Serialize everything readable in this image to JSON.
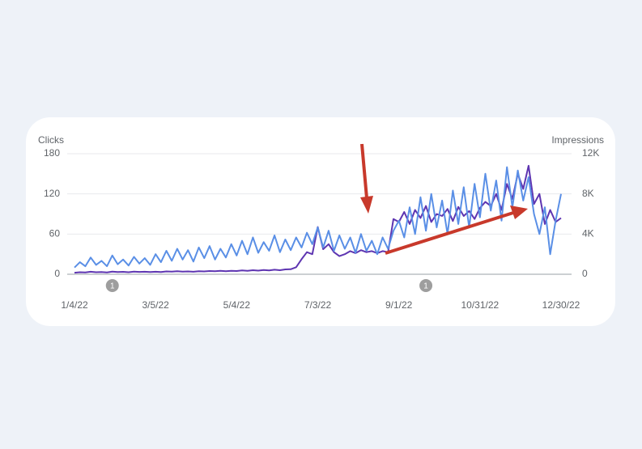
{
  "chart_data": {
    "type": "line",
    "y_label": "Clicks",
    "y2_label": "Impressions",
    "x": [
      "1/4/22",
      "1/8/22",
      "1/12/22",
      "1/16/22",
      "1/20/22",
      "1/24/22",
      "1/28/22",
      "2/1/22",
      "2/5/22",
      "2/9/22",
      "2/13/22",
      "2/17/22",
      "2/21/22",
      "2/25/22",
      "3/1/22",
      "3/5/22",
      "3/9/22",
      "3/13/22",
      "3/17/22",
      "3/21/22",
      "3/25/22",
      "3/29/22",
      "4/2/22",
      "4/6/22",
      "4/10/22",
      "4/14/22",
      "4/18/22",
      "4/22/22",
      "4/26/22",
      "4/30/22",
      "5/4/22",
      "5/8/22",
      "5/12/22",
      "5/16/22",
      "5/20/22",
      "5/24/22",
      "5/28/22",
      "6/1/22",
      "6/5/22",
      "6/9/22",
      "6/13/22",
      "6/17/22",
      "6/21/22",
      "6/25/22",
      "6/29/22",
      "7/3/22",
      "7/7/22",
      "7/11/22",
      "7/15/22",
      "7/19/22",
      "7/23/22",
      "7/27/22",
      "7/31/22",
      "8/4/22",
      "8/8/22",
      "8/12/22",
      "8/16/22",
      "8/20/22",
      "8/24/22",
      "8/28/22",
      "9/1/22",
      "9/5/22",
      "9/9/22",
      "9/13/22",
      "9/17/22",
      "9/21/22",
      "9/25/22",
      "9/29/22",
      "10/3/22",
      "10/7/22",
      "10/11/22",
      "10/15/22",
      "10/19/22",
      "10/23/22",
      "10/27/22",
      "10/31/22",
      "11/4/22",
      "11/8/22",
      "11/12/22",
      "11/16/22",
      "11/20/22",
      "11/24/22",
      "11/28/22",
      "12/2/22",
      "12/6/22",
      "12/10/22",
      "12/14/22",
      "12/18/22",
      "12/22/22",
      "12/26/22",
      "12/30/22"
    ],
    "xlim": [
      "1/4/22",
      "12/30/22"
    ],
    "xticks": [
      "1/4/22",
      "3/5/22",
      "5/4/22",
      "7/3/22",
      "9/1/22",
      "10/31/22",
      "12/30/22"
    ],
    "ylim": [
      0,
      180
    ],
    "yticks": [
      0,
      60,
      120,
      180
    ],
    "y2lim": [
      0,
      12000
    ],
    "y2ticks": [
      0,
      {
        "value": 4000,
        "label": "4K"
      },
      {
        "value": 8000,
        "label": "8K"
      },
      {
        "value": 12000,
        "label": "12K"
      }
    ],
    "grid": true,
    "series": [
      {
        "color": "#5e35b1",
        "axis": "y2",
        "values": [
          150,
          200,
          180,
          250,
          200,
          220,
          180,
          260,
          220,
          240,
          200,
          260,
          230,
          250,
          220,
          250,
          220,
          280,
          260,
          300,
          260,
          280,
          250,
          300,
          280,
          320,
          300,
          340,
          300,
          350,
          320,
          380,
          340,
          400,
          360,
          420,
          380,
          450,
          400,
          480,
          500,
          700,
          1500,
          2200,
          2000,
          4700,
          2500,
          3000,
          2200,
          1800,
          2000,
          2300,
          2100,
          2400,
          2200,
          2300,
          2100,
          2300,
          2200,
          5500,
          5200,
          6200,
          5000,
          6400,
          5600,
          6800,
          5200,
          6000,
          5800,
          6500,
          5300,
          6700,
          5800,
          6300,
          5500,
          6600,
          7200,
          6800,
          8000,
          6400,
          9000,
          7500,
          10000,
          8500,
          10800,
          7000,
          8000,
          5000,
          6400,
          5200,
          5600
        ]
      },
      {
        "color": "#5a8fe6",
        "values": [
          10,
          18,
          12,
          25,
          14,
          20,
          12,
          28,
          15,
          22,
          13,
          26,
          16,
          24,
          14,
          30,
          18,
          35,
          20,
          38,
          22,
          36,
          19,
          40,
          24,
          42,
          22,
          38,
          25,
          45,
          28,
          50,
          30,
          55,
          32,
          48,
          35,
          58,
          33,
          52,
          36,
          55,
          40,
          62,
          45,
          70,
          40,
          65,
          35,
          58,
          38,
          55,
          32,
          60,
          35,
          50,
          30,
          55,
          38,
          65,
          80,
          55,
          100,
          60,
          115,
          65,
          120,
          70,
          110,
          60,
          125,
          75,
          130,
          70,
          135,
          85,
          150,
          95,
          140,
          80,
          160,
          100,
          155,
          110,
          145,
          90,
          60,
          100,
          30,
          80,
          120
        ]
      }
    ],
    "annotations": [
      {
        "x": "2/1/22",
        "label": "1"
      },
      {
        "x": "9/21/22",
        "label": "1"
      }
    ]
  }
}
